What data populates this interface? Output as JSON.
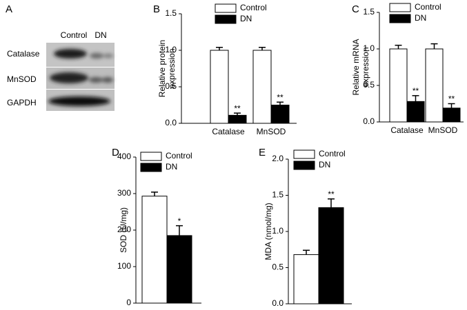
{
  "blot": {
    "panel": "A",
    "columns": [
      "Control",
      "DN"
    ],
    "rows": [
      "Catalase",
      "MnSOD",
      "GAPDH"
    ]
  },
  "chart_data": [
    {
      "type": "bar",
      "panel": "B",
      "ylabel": [
        "Relative protein",
        "expression"
      ],
      "categories": [
        "Catalase",
        "MnSOD"
      ],
      "series": [
        {
          "name": "Control",
          "color": "#ffffff",
          "values": [
            1.0,
            1.0
          ],
          "errors": [
            0.04,
            0.04
          ]
        },
        {
          "name": "DN",
          "color": "#000000",
          "values": [
            0.11,
            0.25
          ],
          "errors": [
            0.03,
            0.04
          ],
          "annotations": [
            "**",
            "**"
          ]
        }
      ],
      "ylim": [
        0,
        1.5
      ],
      "yticks": [
        {
          "value": 0,
          "label": "0.0"
        },
        0.5,
        {
          "value": 1,
          "label": "1.0"
        },
        1.5
      ]
    },
    {
      "type": "bar",
      "panel": "C",
      "ylabel": [
        "Relative mRNA",
        "expression"
      ],
      "categories": [
        "Catalase",
        "MnSOD"
      ],
      "series": [
        {
          "name": "Control",
          "color": "#ffffff",
          "values": [
            1.0,
            1.0
          ],
          "errors": [
            0.05,
            0.07
          ]
        },
        {
          "name": "DN",
          "color": "#000000",
          "values": [
            0.28,
            0.19
          ],
          "errors": [
            0.08,
            0.06
          ],
          "annotations": [
            "**",
            "**"
          ]
        }
      ],
      "ylim": [
        0,
        1.5
      ],
      "yticks": [
        {
          "value": 0,
          "label": "0.0"
        },
        0.5,
        {
          "value": 1,
          "label": "1.0"
        },
        1.5
      ]
    },
    {
      "type": "bar",
      "panel": "D",
      "ylabel": [
        "SOD (U/mg)"
      ],
      "categories": [
        null
      ],
      "series": [
        {
          "name": "Control",
          "color": "#ffffff",
          "values": [
            293
          ],
          "errors": [
            11
          ]
        },
        {
          "name": "DN",
          "color": "#000000",
          "values": [
            185
          ],
          "errors": [
            27
          ],
          "annotations": [
            "*"
          ]
        }
      ],
      "ylim": [
        0,
        400
      ],
      "yticks": [
        0,
        100,
        200,
        300,
        400
      ]
    },
    {
      "type": "bar",
      "panel": "E",
      "ylabel": [
        "MDA (nmol/mg)"
      ],
      "categories": [
        null
      ],
      "series": [
        {
          "name": "Control",
          "color": "#ffffff",
          "values": [
            0.68
          ],
          "errors": [
            0.06
          ]
        },
        {
          "name": "DN",
          "color": "#000000",
          "values": [
            1.33
          ],
          "errors": [
            0.12
          ],
          "annotations": [
            "**"
          ]
        }
      ],
      "ylim": [
        0,
        2.0
      ],
      "yticks": [
        {
          "value": 0,
          "label": "0.0"
        },
        0.5,
        {
          "value": 1,
          "label": "1.0"
        },
        1.5,
        {
          "value": 2,
          "label": "2.0"
        }
      ]
    }
  ]
}
